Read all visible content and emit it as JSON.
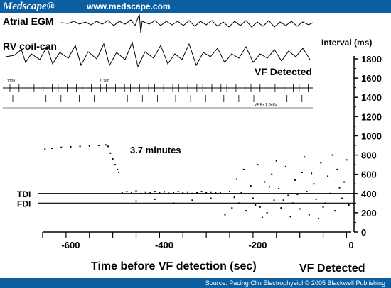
{
  "header": {
    "brand": "Medscape®",
    "url": "www.medscape.com"
  },
  "footer": {
    "source": "Source: Pacing Clin Electrophysiol © 2005 Blackwell Publishing"
  },
  "tracings": {
    "atrial_label": "Atrial EGM",
    "rv_label": "RV coil-can",
    "vf_label": "VF Detected",
    "marker_left": "1720",
    "marker_right": "11760",
    "marker_end": "VF Rx 1 Defib"
  },
  "chart_data": {
    "type": "scatter",
    "title": "",
    "xlabel": "Time before VF detection (sec)",
    "ylabel": "Interval (ms)",
    "xlim": [
      -660,
      0
    ],
    "ylim": [
      0,
      1800
    ],
    "x_ticks": [
      -600,
      -400,
      -200,
      0
    ],
    "y_ticks": [
      0,
      200,
      400,
      600,
      800,
      1000,
      1200,
      1400,
      1600,
      1800
    ],
    "x_tick_labels": [
      "-600",
      "-400",
      "-200",
      "0"
    ],
    "y_tick_labels": [
      "0",
      "200",
      "400",
      "600",
      "800",
      "1000",
      "1200",
      "1400",
      "1600",
      "1800"
    ],
    "reference_lines": [
      {
        "label": "TDI",
        "value": 400
      },
      {
        "label": "FDI",
        "value": 300
      }
    ],
    "annotations": [
      {
        "text": "3.7 minutes"
      },
      {
        "text": "VF Detected"
      }
    ],
    "series": [
      {
        "points": [
          [
            -655,
            860
          ],
          [
            -640,
            870
          ],
          [
            -620,
            880
          ],
          [
            -600,
            885
          ],
          [
            -580,
            890
          ],
          [
            -560,
            895
          ],
          [
            -540,
            900
          ],
          [
            -525,
            905
          ],
          [
            -520,
            890
          ],
          [
            -515,
            820
          ],
          [
            -510,
            760
          ],
          [
            -505,
            700
          ],
          [
            -500,
            650
          ],
          [
            -497,
            620
          ]
        ]
      },
      {
        "points": [
          [
            -490,
            410
          ],
          [
            -480,
            420
          ],
          [
            -470,
            410
          ],
          [
            -460,
            425
          ],
          [
            -450,
            400
          ],
          [
            -440,
            415
          ],
          [
            -430,
            405
          ],
          [
            -420,
            420
          ],
          [
            -410,
            410
          ],
          [
            -400,
            418
          ],
          [
            -390,
            402
          ],
          [
            -380,
            412
          ],
          [
            -370,
            420
          ],
          [
            -360,
            405
          ],
          [
            -350,
            415
          ],
          [
            -340,
            400
          ],
          [
            -330,
            412
          ],
          [
            -320,
            420
          ],
          [
            -310,
            408
          ],
          [
            -300,
            415
          ],
          [
            -290,
            405
          ],
          [
            -280,
            410
          ],
          [
            -460,
            320
          ],
          [
            -420,
            340
          ],
          [
            -380,
            300
          ],
          [
            -340,
            330
          ],
          [
            -300,
            350
          ]
        ]
      },
      {
        "points": [
          [
            -270,
            180
          ],
          [
            -260,
            420
          ],
          [
            -255,
            250
          ],
          [
            -245,
            550
          ],
          [
            -240,
            300
          ],
          [
            -230,
            650
          ],
          [
            -225,
            220
          ],
          [
            -215,
            480
          ],
          [
            -210,
            350
          ],
          [
            -200,
            700
          ],
          [
            -195,
            260
          ],
          [
            -185,
            520
          ],
          [
            -180,
            200
          ],
          [
            -170,
            600
          ],
          [
            -165,
            330
          ],
          [
            -155,
            450
          ],
          [
            -150,
            250
          ],
          [
            -140,
            680
          ],
          [
            -135,
            380
          ],
          [
            -125,
            300
          ],
          [
            -120,
            540
          ],
          [
            -110,
            240
          ],
          [
            -105,
            620
          ],
          [
            -95,
            420
          ],
          [
            -90,
            180
          ],
          [
            -80,
            500
          ],
          [
            -75,
            340
          ],
          [
            -65,
            720
          ],
          [
            -60,
            260
          ],
          [
            -50,
            580
          ],
          [
            -45,
            400
          ],
          [
            -35,
            220
          ],
          [
            -30,
            650
          ],
          [
            -20,
            350
          ],
          [
            -15,
            520
          ],
          [
            -5,
            280
          ],
          [
            -250,
            360
          ],
          [
            -235,
            410
          ],
          [
            -205,
            280
          ],
          [
            -175,
            470
          ],
          [
            -145,
            330
          ],
          [
            -115,
            390
          ],
          [
            -85,
            610
          ],
          [
            -55,
            300
          ],
          [
            -25,
            460
          ],
          [
            -10,
            750
          ],
          [
            -190,
            150
          ],
          [
            -130,
            160
          ],
          [
            -70,
            140
          ],
          [
            -40,
            800
          ],
          [
            -160,
            740
          ],
          [
            -100,
            780
          ]
        ]
      }
    ]
  }
}
